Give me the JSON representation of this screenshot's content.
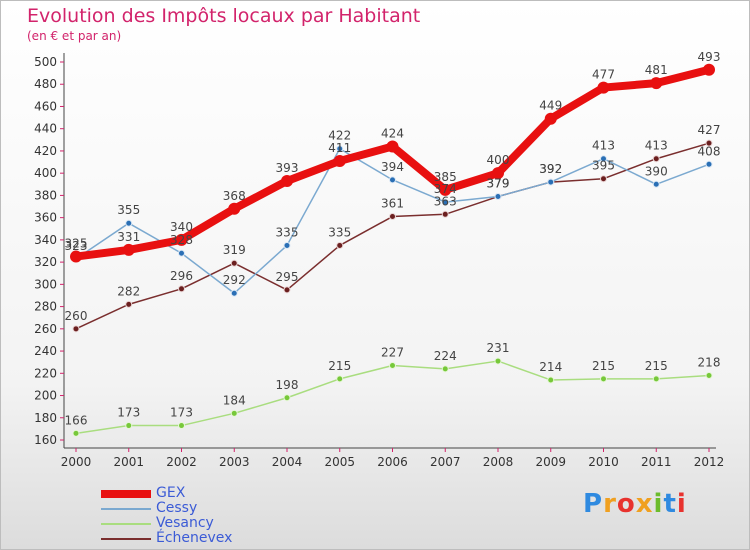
{
  "header": {
    "title": "Evolution des Impôts locaux par Habitant",
    "subtitle": "(en € et par an)"
  },
  "logo": {
    "letters": [
      "P",
      "r",
      "o",
      "x",
      "i",
      "t",
      "i"
    ]
  },
  "colors": {
    "GEX": "#e81010",
    "Cessy": "#7ba9d0",
    "Vesancy": "#a9dd7f",
    "Echenevex": "#7a2e2e",
    "title": "#d2236b",
    "legend_text": "#3b5bd6",
    "axis_tick": "#d2236b"
  },
  "chart_data": {
    "type": "line",
    "title": "Evolution des Impôts locaux par Habitant",
    "subtitle": "(en € et par an)",
    "x": [
      "2000",
      "2001",
      "2002",
      "2003",
      "2004",
      "2005",
      "2006",
      "2007",
      "2008",
      "2009",
      "2010",
      "2011",
      "2012"
    ],
    "ylim": [
      160,
      500
    ],
    "yticks": [
      160,
      180,
      200,
      220,
      240,
      260,
      280,
      300,
      320,
      340,
      360,
      380,
      400,
      420,
      440,
      460,
      480,
      500
    ],
    "grid": false,
    "legend": "bottom-left",
    "series": [
      {
        "name": "GEX",
        "values": [
          325,
          331,
          340,
          368,
          393,
          411,
          424,
          385,
          400,
          449,
          477,
          481,
          493
        ]
      },
      {
        "name": "Cessy",
        "values": [
          323,
          355,
          328,
          292,
          335,
          422,
          394,
          374,
          379,
          392,
          413,
          390,
          408
        ]
      },
      {
        "name": "Vesancy",
        "values": [
          166,
          173,
          173,
          184,
          198,
          215,
          227,
          224,
          231,
          214,
          215,
          215,
          218
        ]
      },
      {
        "name": "Échenevex",
        "values": [
          260,
          282,
          296,
          319,
          295,
          335,
          361,
          363,
          379,
          392,
          395,
          413,
          427
        ]
      }
    ]
  }
}
